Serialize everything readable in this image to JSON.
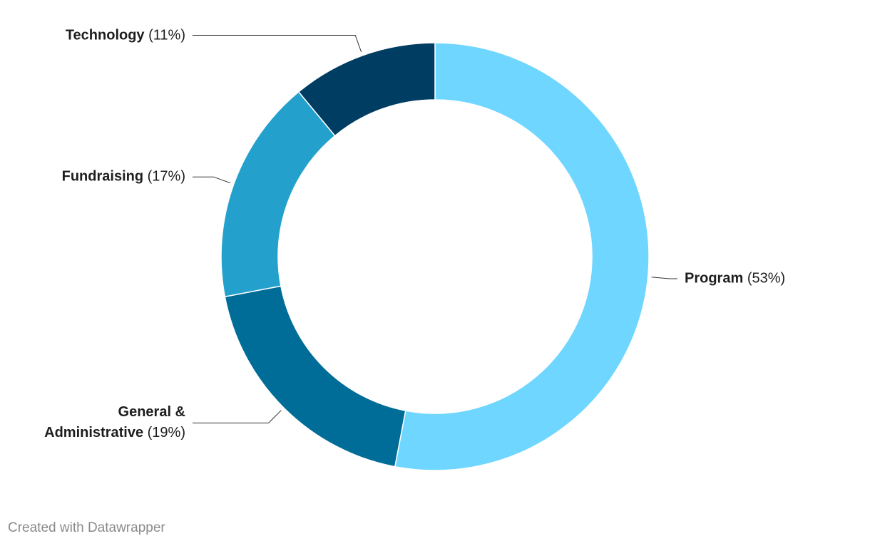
{
  "chart_data": {
    "type": "donut",
    "categories": [
      "Program",
      "General & Administrative",
      "Fundraising",
      "Technology"
    ],
    "values": [
      53,
      19,
      17,
      11
    ],
    "value_labels": [
      "(53%)",
      "(19%)",
      "(17%)",
      "(11%)"
    ],
    "colors": [
      "#6ed6ff",
      "#006d98",
      "#23a1cc",
      "#003d63"
    ],
    "credit": "Created with Datawrapper"
  }
}
